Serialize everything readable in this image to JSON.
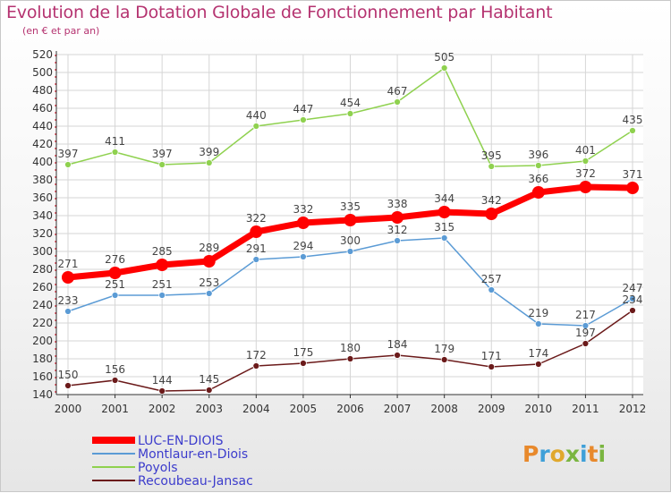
{
  "title": "Evolution de la Dotation Globale de Fonctionnement par Habitant",
  "subtitle": "(en € et par an)",
  "logo": "Proxiti",
  "colors": {
    "title": "#b53370",
    "legend_text": "#3c3ccc",
    "grid": "#d6d6d6",
    "axis": "#333333"
  },
  "chart_data": {
    "type": "line",
    "title": "Evolution de la Dotation Globale de Fonctionnement par Habitant",
    "subtitle": "(en € et par an)",
    "x": [
      "2000",
      "2001",
      "2002",
      "2003",
      "2004",
      "2005",
      "2006",
      "2007",
      "2008",
      "2009",
      "2010",
      "2011",
      "2012"
    ],
    "ylim": [
      140,
      520
    ],
    "yticks": [
      140,
      160,
      180,
      200,
      220,
      240,
      260,
      280,
      300,
      320,
      340,
      360,
      380,
      400,
      420,
      440,
      460,
      480,
      500,
      520
    ],
    "grid": true,
    "legend_position": "bottom-left",
    "series": [
      {
        "name": "LUC-EN-DIOIS",
        "color": "#ff0000",
        "width": 7,
        "marker": 7,
        "values": [
          271,
          276,
          285,
          289,
          322,
          332,
          335,
          338,
          344,
          342,
          366,
          372,
          371
        ]
      },
      {
        "name": "Montlaur-en-Diois",
        "color": "#5b9bd5",
        "width": 1.5,
        "marker": 3.5,
        "values": [
          233,
          251,
          251,
          253,
          291,
          294,
          300,
          312,
          315,
          257,
          219,
          217,
          247
        ]
      },
      {
        "name": "Poyols",
        "color": "#8fd14f",
        "width": 1.5,
        "marker": 3.5,
        "values": [
          397,
          411,
          397,
          399,
          440,
          447,
          454,
          467,
          505,
          395,
          396,
          401,
          435
        ]
      },
      {
        "name": "Recoubeau-Jansac",
        "color": "#6b1a1a",
        "width": 1.5,
        "marker": 3.5,
        "values": [
          150,
          156,
          144,
          145,
          172,
          175,
          180,
          184,
          179,
          171,
          174,
          197,
          234
        ]
      }
    ]
  }
}
